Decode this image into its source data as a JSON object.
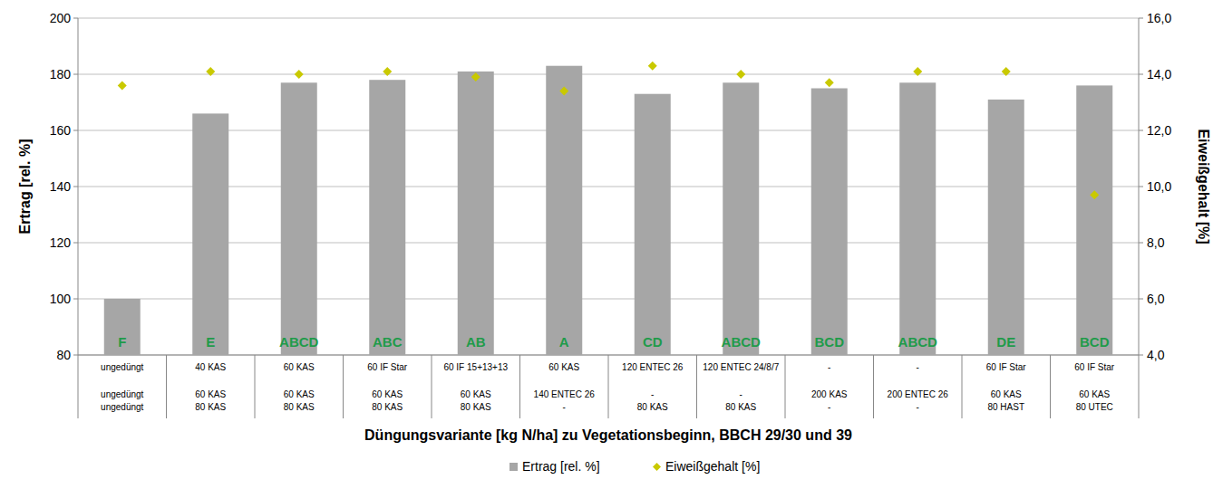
{
  "chart_data": {
    "type": "bar",
    "x_label": "Düngungsvariante [kg N/ha] zu Vegetationsbeginn, BBCH 29/30 und 39",
    "y_label": "Ertrag [rel. %]",
    "y2_label": "Eiweißgehalt [%]",
    "categories": [
      [
        "ungedüngt",
        "ungedüngt",
        "ungedüngt"
      ],
      [
        "40 KAS",
        "60 KAS",
        "80 KAS"
      ],
      [
        "60 KAS",
        "60 KAS",
        "80 KAS"
      ],
      [
        "60 IF Star",
        "60 KAS",
        "80 KAS"
      ],
      [
        "60 IF 15+13+13",
        "60 KAS",
        "80 KAS"
      ],
      [
        "60 KAS",
        "140 ENTEC 26",
        "-"
      ],
      [
        "120 ENTEC 26",
        "-",
        "80 KAS"
      ],
      [
        "120 ENTEC 24/8/7",
        "-",
        "80 KAS"
      ],
      [
        "-",
        "200 KAS",
        "-"
      ],
      [
        "-",
        "200 ENTEC 26",
        "-"
      ],
      [
        "60 IF Star",
        "60 KAS",
        "80 HAST"
      ],
      [
        "60 IF Star",
        "60 KAS",
        "80 UTEC"
      ]
    ],
    "annotations": [
      "F",
      "E",
      "ABCD",
      "ABC",
      "AB",
      "A",
      "CD",
      "ABCD",
      "BCD",
      "ABCD",
      "DE",
      "BCD"
    ],
    "series": [
      {
        "name": "Ertrag [rel. %]",
        "type": "bar",
        "color": "#a6a6a6",
        "values": [
          100,
          166,
          177,
          178,
          181,
          183,
          173,
          177,
          175,
          177,
          171,
          176
        ]
      },
      {
        "name": "Eiweißgehalt [%]",
        "type": "scatter",
        "marker": "diamond",
        "color": "#c9c900",
        "axis": "y2",
        "values": [
          13.6,
          14.1,
          14.0,
          14.1,
          13.9,
          13.4,
          14.3,
          14.0,
          13.7,
          14.1,
          14.1,
          9.7
        ]
      }
    ],
    "ylim": [
      80,
      200
    ],
    "yticks": [
      80,
      100,
      120,
      140,
      160,
      180,
      200
    ],
    "y2lim": [
      4,
      16
    ],
    "y2ticks": [
      {
        "value": 4,
        "label": "4,0"
      },
      {
        "value": 6,
        "label": "6,0"
      },
      {
        "value": 8,
        "label": "8,0"
      },
      {
        "value": 10,
        "label": "10,0"
      },
      {
        "value": 12,
        "label": "12,0"
      },
      {
        "value": 14,
        "label": "14,0"
      },
      {
        "value": 16,
        "label": "16,0"
      }
    ],
    "grid": true,
    "legend": "bottom"
  }
}
